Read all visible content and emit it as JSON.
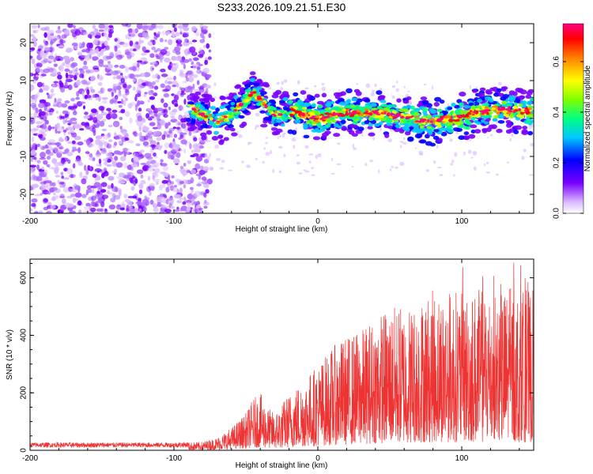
{
  "title": "S233.2026.109.21.51.E30",
  "chart_data": [
    {
      "type": "heatmap",
      "name": "spectrogram",
      "xlabel": "Height of straight line (km)",
      "ylabel": "Frequency (Hz)",
      "xlim": [
        -200,
        150
      ],
      "ylim": [
        -25,
        25
      ],
      "xticks": [
        -200,
        -100,
        0,
        100
      ],
      "yticks": [
        -20,
        -10,
        0,
        10,
        20
      ],
      "colorbar": {
        "label": "Normalized spectral amplitude",
        "range": [
          0,
          0.75
        ],
        "ticks": [
          "0.0",
          "0.2",
          "0.4",
          "0.6"
        ],
        "tick_values": [
          0,
          0.2,
          0.4,
          0.6
        ],
        "colors": [
          "#ffffff",
          "#d9b8ff",
          "#7a00ff",
          "#0000ff",
          "#00c8ff",
          "#00ff80",
          "#80ff00",
          "#ffff00",
          "#ff8000",
          "#ff0000",
          "#ff0080"
        ]
      },
      "noise_region": {
        "x": [
          -200,
          -75
        ],
        "y": [
          -25,
          25
        ]
      },
      "signal_track": {
        "x": [
          -90,
          -80,
          -70,
          -60,
          -50,
          -45,
          -40,
          -35,
          -30,
          -20,
          -10,
          0,
          10,
          20,
          30,
          40,
          50,
          60,
          70,
          80,
          90,
          100,
          110,
          120,
          130,
          140,
          150
        ],
        "y": [
          3,
          1,
          -1,
          1,
          5,
          7,
          5,
          3,
          1,
          2,
          1,
          0,
          1,
          1.5,
          1.5,
          1.5,
          1,
          0.5,
          -0.5,
          -1,
          0,
          0.5,
          1.5,
          2,
          2.5,
          2,
          2
        ],
        "peak_amplitude": 0.75
      }
    },
    {
      "type": "line",
      "name": "snr",
      "xlabel": "Height of straight line (km)",
      "ylabel": "SNR (10 * v/v)",
      "xlim": [
        -200,
        150
      ],
      "ylim": [
        0,
        665
      ],
      "xticks": [
        -200,
        -100,
        0,
        100
      ],
      "yticks": [
        0,
        200,
        400,
        600
      ],
      "color": "#ee3333",
      "envelope": {
        "x": [
          -200,
          -100,
          -80,
          -70,
          -60,
          -50,
          -45,
          -40,
          -35,
          -30,
          -20,
          -10,
          0,
          10,
          20,
          30,
          40,
          50,
          60,
          70,
          80,
          90,
          100,
          110,
          120,
          130,
          140,
          150
        ],
        "y": [
          25,
          25,
          30,
          45,
          80,
          130,
          180,
          200,
          150,
          130,
          200,
          250,
          300,
          360,
          400,
          420,
          470,
          500,
          510,
          520,
          560,
          560,
          560,
          560,
          580,
          560,
          560,
          560
        ]
      }
    }
  ]
}
